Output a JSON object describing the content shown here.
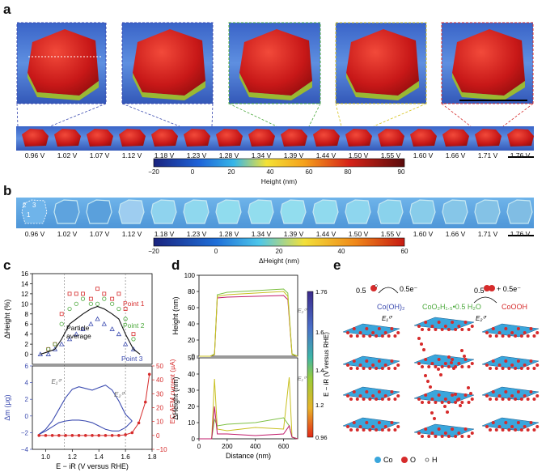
{
  "panels": {
    "a": {
      "letter": "a"
    },
    "b": {
      "letter": "b"
    },
    "c": {
      "letter": "c"
    },
    "d": {
      "letter": "d"
    },
    "e": {
      "letter": "e"
    }
  },
  "voltages": [
    "0.96 V",
    "1.02 V",
    "1.07 V",
    "1.12 V",
    "1.18 V",
    "1.23 V",
    "1.28 V",
    "1.34 V",
    "1.39 V",
    "1.44 V",
    "1.50 V",
    "1.55 V",
    "1.60 V",
    "1.66 V",
    "1.71 V",
    "1.76 V"
  ],
  "colorbar_a": {
    "ticks": [
      "−20",
      "0",
      "20",
      "40",
      "60",
      "80",
      "90"
    ],
    "label": "Height (nm)"
  },
  "colorbar_b": {
    "ticks": [
      "−20",
      "0",
      "20",
      "40",
      "60"
    ],
    "label": "ΔHeight (nm)"
  },
  "panel_b_points": [
    "1",
    "2",
    "3"
  ],
  "colors": {
    "blue_dash": "#3b4bb0",
    "green_dash": "#4aa83a",
    "yellow_dash": "#d6c21a",
    "red_dash": "#d62b2b"
  },
  "chart_data": [
    {
      "type": "scatter",
      "title": "",
      "xlabel": "E − iR (V versus RHE)",
      "ylabel": "ΔHeight (%)",
      "ylim": [
        -2,
        16
      ],
      "yticks": [
        "0",
        "2",
        "4",
        "6",
        "8",
        "10",
        "12",
        "14",
        "16"
      ],
      "series": [
        {
          "name": "Point 1",
          "color": "#d62b2b",
          "x": [
            1.02,
            1.07,
            1.12,
            1.18,
            1.23,
            1.28,
            1.34,
            1.39,
            1.44,
            1.5,
            1.55,
            1.6,
            1.66
          ],
          "values": [
            1,
            2,
            8,
            12,
            12,
            12,
            11,
            13,
            12,
            11,
            12,
            9,
            4
          ]
        },
        {
          "name": "Point 2",
          "color": "#4aa83a",
          "x": [
            1.02,
            1.07,
            1.12,
            1.18,
            1.23,
            1.28,
            1.34,
            1.39,
            1.44,
            1.5,
            1.55,
            1.6,
            1.66
          ],
          "values": [
            1,
            2,
            6,
            9,
            10,
            11,
            10,
            10,
            11,
            10,
            9,
            7,
            3
          ]
        },
        {
          "name": "Point 3",
          "color": "#3b4bb0",
          "x": [
            0.96,
            1.02,
            1.07,
            1.12,
            1.18,
            1.23,
            1.28,
            1.34,
            1.39,
            1.44,
            1.5,
            1.55,
            1.6,
            1.66
          ],
          "values": [
            0,
            0,
            1,
            2,
            3,
            4,
            5,
            6,
            7,
            6,
            5,
            4,
            2,
            1
          ]
        },
        {
          "name": "Particle average",
          "color": "#111111",
          "x": [
            0.96,
            1.02,
            1.07,
            1.12,
            1.18,
            1.23,
            1.28,
            1.34,
            1.39,
            1.44,
            1.5,
            1.55,
            1.6,
            1.66,
            1.71
          ],
          "values": [
            0,
            0.5,
            1,
            3,
            6,
            7,
            8,
            9,
            9.5,
            9,
            8,
            7,
            4,
            1,
            0
          ]
        }
      ],
      "labels": {
        "point1": "Point 1",
        "point2": "Point 2",
        "point3": "Point 3",
        "avg": "Particle average"
      }
    },
    {
      "type": "line",
      "title": "",
      "xlabel": "E − iR (V versus RHE)",
      "ylabel": "Δm (μg)",
      "ylabel_right": "EC-AFM current (μA)",
      "xlim": [
        0.9,
        1.8
      ],
      "ylim": [
        -4,
        6
      ],
      "ylim_right": [
        -10,
        50
      ],
      "xticks": [
        "1.0",
        "1.2",
        "1.4",
        "1.6",
        "1.8"
      ],
      "yticks": [
        "−4",
        "−2",
        "0",
        "2",
        "4",
        "6"
      ],
      "yticks_right": [
        "−10",
        "0",
        "10",
        "20",
        "30",
        "40",
        "50"
      ],
      "annotations": [
        "E₁⁰′",
        "E₂⁰′"
      ],
      "e1": 1.14,
      "e2": 1.6,
      "mass_up": {
        "x": [
          0.95,
          1.0,
          1.05,
          1.1,
          1.15,
          1.2,
          1.25,
          1.3,
          1.35,
          1.4,
          1.45,
          1.5,
          1.55,
          1.6,
          1.65
        ],
        "values": [
          -2.2,
          -1.6,
          -0.6,
          0.8,
          2.2,
          3.2,
          3.5,
          3.3,
          3.1,
          3.4,
          3.7,
          3.1,
          1.8,
          0.2,
          -0.6
        ]
      },
      "mass_down": {
        "x": [
          1.65,
          1.6,
          1.55,
          1.5,
          1.45,
          1.4,
          1.35,
          1.3,
          1.25,
          1.2,
          1.15,
          1.1,
          1.05,
          1.0,
          0.95
        ],
        "values": [
          -0.6,
          -1.4,
          -1.8,
          -1.8,
          -1.6,
          -1.2,
          -0.8,
          -0.6,
          -0.5,
          -0.5,
          -0.6,
          -0.8,
          -1.3,
          -1.8,
          -2.2
        ]
      },
      "current": {
        "x": [
          0.95,
          1.0,
          1.05,
          1.1,
          1.15,
          1.2,
          1.25,
          1.3,
          1.35,
          1.4,
          1.45,
          1.5,
          1.55,
          1.6,
          1.65,
          1.7,
          1.75,
          1.78
        ],
        "values": [
          0,
          0,
          0,
          0,
          0,
          0,
          0,
          0,
          0,
          0,
          0,
          0,
          0,
          0.5,
          2,
          9,
          24,
          44
        ]
      }
    },
    {
      "type": "line",
      "title": "",
      "xlabel": "Distance (nm)",
      "ylabel": "Height (nm)",
      "xlim": [
        0,
        700
      ],
      "ylim": [
        0,
        100
      ],
      "xticks": [
        "0",
        "200",
        "400",
        "600"
      ],
      "yticks": [
        "0",
        "20",
        "40",
        "60",
        "80",
        "100"
      ],
      "series": [
        {
          "name": "0.96 V",
          "color": "#c01a6a",
          "x": [
            0,
            80,
            110,
            130,
            200,
            400,
            600,
            630,
            660,
            700
          ],
          "values": [
            0,
            0,
            2,
            72,
            73,
            74,
            75,
            70,
            2,
            0
          ]
        },
        {
          "name": "1.34 V",
          "color": "#7dc043",
          "x": [
            0,
            80,
            110,
            130,
            200,
            400,
            600,
            630,
            660,
            700
          ],
          "values": [
            0,
            0,
            3,
            76,
            79,
            81,
            83,
            78,
            3,
            0
          ]
        },
        {
          "name": "1.76 V",
          "color": "#c8c020",
          "x": [
            0,
            80,
            110,
            130,
            200,
            400,
            600,
            630,
            660,
            700
          ],
          "values": [
            0,
            0,
            2,
            74,
            76,
            78,
            80,
            74,
            2,
            0
          ]
        }
      ]
    },
    {
      "type": "line",
      "title": "",
      "xlabel": "Distance (nm)",
      "ylabel": "ΔHeight (nm)",
      "xlim": [
        0,
        700
      ],
      "ylim": [
        0,
        50
      ],
      "xticks": [
        "0",
        "200",
        "400",
        "600"
      ],
      "yticks": [
        "0",
        "10",
        "20",
        "30",
        "40",
        "50"
      ],
      "colorbar": {
        "label": "E − iR (V versus RHE)",
        "ticks": [
          "1.76",
          "1.6",
          "1.4",
          "1.2",
          "0.96"
        ],
        "annotations": [
          "E₂⁰′",
          "E₁⁰′"
        ]
      },
      "series": [
        {
          "name": "1.76 V",
          "color": "#c8c020",
          "x": [
            0,
            90,
            110,
            130,
            200,
            400,
            600,
            640,
            660,
            700
          ],
          "values": [
            0,
            0,
            37,
            6,
            5,
            7,
            6,
            38,
            1,
            0
          ]
        },
        {
          "name": "1.34 V",
          "color": "#7dc043",
          "x": [
            0,
            90,
            110,
            130,
            200,
            400,
            600,
            640,
            660,
            700
          ],
          "values": [
            0,
            0,
            12,
            8,
            9,
            10,
            13,
            8,
            1,
            0
          ]
        },
        {
          "name": "0.96 V",
          "color": "#c01a6a",
          "x": [
            0,
            90,
            110,
            130,
            200,
            400,
            600,
            640,
            660,
            700
          ],
          "values": [
            0,
            0,
            20,
            3,
            3,
            2,
            3,
            8,
            1,
            0
          ]
        }
      ]
    }
  ],
  "panel_e": {
    "left_coef": "0.5",
    "right_electron": "0.5e⁻",
    "species1": "Co(OH)₂",
    "e1": "E₁⁰′",
    "species2": "CoO₂H₁.₅•0.5 H₂O",
    "right_coef": "0.5",
    "right_electron2": "+ 0.5e⁻",
    "e2": "E₂⁰′",
    "species3": "CoOOH",
    "legend": {
      "co": "Co",
      "o": "O",
      "h": "H"
    }
  }
}
